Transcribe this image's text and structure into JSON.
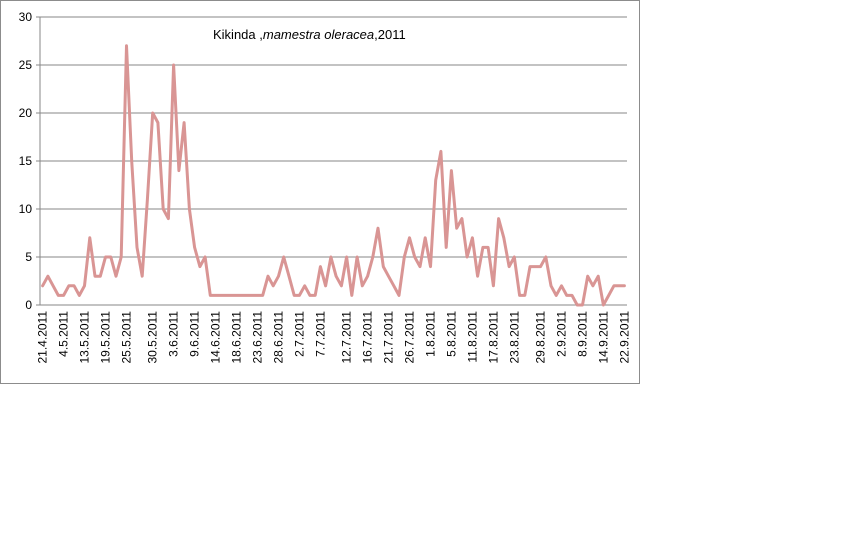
{
  "chart_data": {
    "type": "line",
    "title": "Kikinda ,mamestra oleracea,2011",
    "title_parts": [
      "Kikinda ,",
      "mamestra oleracea",
      ",2011"
    ],
    "xlabel": "",
    "ylabel": "",
    "ylim": [
      0,
      30
    ],
    "y_ticks": [
      0,
      5,
      10,
      15,
      20,
      25,
      30
    ],
    "grid": "horizontal",
    "legend": "none",
    "line_color": "#d99594",
    "x_tick_labels": [
      "21.4.2011",
      "4.5.2011",
      "13.5.2011",
      "19.5.2011",
      "25.5.2011",
      "30.5.2011",
      "3.6.2011",
      "9.6.2011",
      "14.6.2011",
      "18.6.2011",
      "23.6.2011",
      "28.6.2011",
      "2.7.2011",
      "7.7.2011",
      "12.7.2011",
      "16.7.2011",
      "21.7.2011",
      "26.7.2011",
      "1.8.2011",
      "5.8.2011",
      "11.8.2011",
      "17.8.2011",
      "23.8.2011",
      "29.8.2011",
      "2.9.2011",
      "8.9.2011",
      "14.9.2011",
      "22.9.2011"
    ],
    "series": [
      {
        "values": [
          2,
          3,
          2,
          1,
          1,
          2,
          2,
          1,
          2,
          7,
          3,
          3,
          5,
          5,
          3,
          5,
          27,
          15,
          6,
          3,
          11,
          20,
          19,
          10,
          9,
          25,
          14,
          19,
          10,
          6,
          4,
          5,
          1,
          1,
          1,
          1,
          1,
          1,
          1,
          1,
          1,
          1,
          1,
          3,
          2,
          3,
          5,
          3,
          1,
          1,
          2,
          1,
          1,
          4,
          2,
          5,
          3,
          2,
          5,
          1,
          5,
          2,
          3,
          5,
          8,
          4,
          3,
          2,
          1,
          5,
          7,
          5,
          4,
          7,
          4,
          13,
          16,
          6,
          14,
          8,
          9,
          5,
          7,
          3,
          6,
          6,
          2,
          9,
          7,
          4,
          5,
          1,
          1,
          4,
          4,
          4,
          5,
          2,
          1,
          2,
          1,
          1,
          0,
          0,
          3,
          2,
          3,
          0,
          1,
          2,
          2,
          2
        ]
      }
    ]
  }
}
